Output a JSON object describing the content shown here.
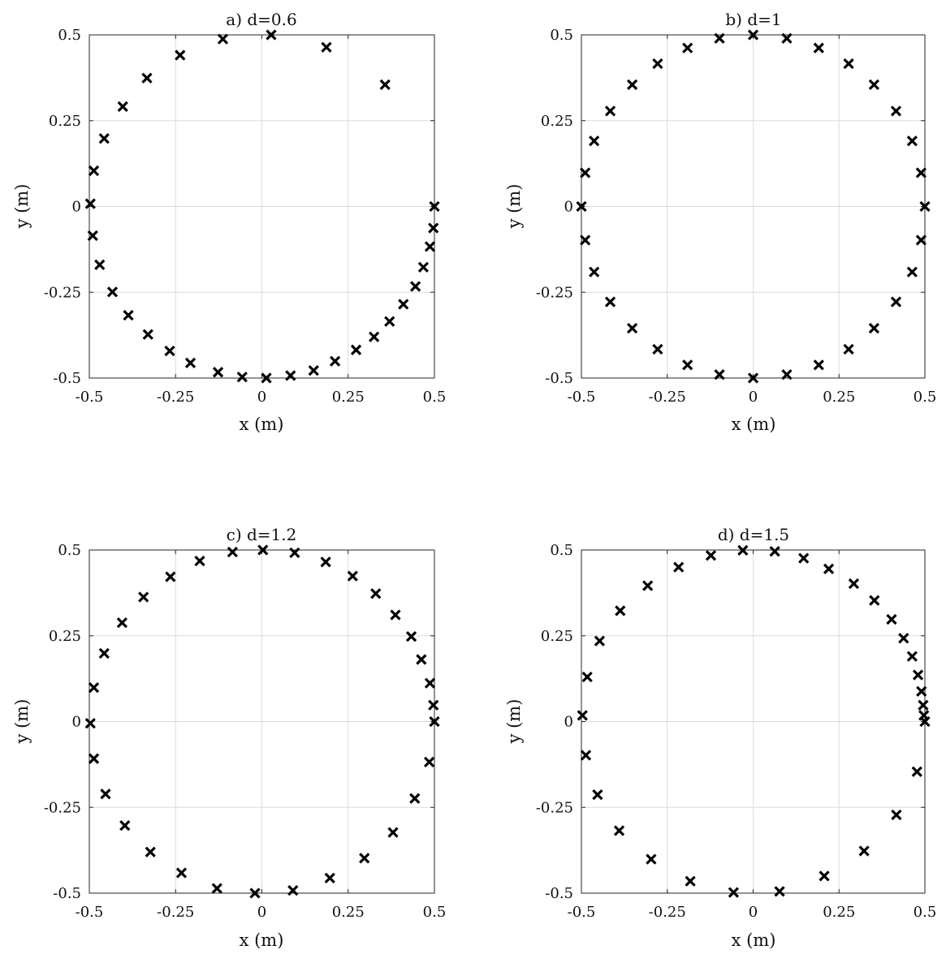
{
  "chart_data": [
    {
      "type": "scatter",
      "title": "a) d=0.6",
      "xlabel": "x (m)",
      "ylabel": "y (m)",
      "xlim": [
        -0.5,
        0.5
      ],
      "ylim": [
        -0.5,
        0.5
      ],
      "xticks": [
        "-0.5",
        "-0.25",
        "0",
        "0.25",
        "0.5"
      ],
      "yticks": [
        "-0.5",
        "-0.25",
        "0",
        "0.25",
        "0.5"
      ],
      "grid": true,
      "marker": "x",
      "points": [
        [
          0.5,
          0.0
        ],
        [
          0.497,
          -0.063
        ],
        [
          0.487,
          -0.117
        ],
        [
          0.468,
          -0.177
        ],
        [
          0.445,
          -0.233
        ],
        [
          0.41,
          -0.285
        ],
        [
          0.37,
          -0.335
        ],
        [
          0.325,
          -0.38
        ],
        [
          0.273,
          -0.418
        ],
        [
          0.212,
          -0.451
        ],
        [
          0.15,
          -0.478
        ],
        [
          0.083,
          -0.493
        ],
        [
          0.013,
          -0.5
        ],
        [
          -0.057,
          -0.497
        ],
        [
          -0.127,
          -0.483
        ],
        [
          -0.207,
          -0.456
        ],
        [
          -0.267,
          -0.421
        ],
        [
          -0.33,
          -0.373
        ],
        [
          -0.387,
          -0.317
        ],
        [
          -0.433,
          -0.249
        ],
        [
          -0.47,
          -0.17
        ],
        [
          -0.49,
          -0.085
        ],
        [
          -0.497,
          0.008
        ],
        [
          -0.487,
          0.104
        ],
        [
          -0.457,
          0.198
        ],
        [
          -0.403,
          0.291
        ],
        [
          -0.333,
          0.374
        ],
        [
          -0.237,
          0.441
        ],
        [
          -0.113,
          0.488
        ],
        [
          0.027,
          0.5
        ],
        [
          0.187,
          0.464
        ],
        [
          0.357,
          0.355
        ]
      ]
    },
    {
      "type": "scatter",
      "title": "b) d=1",
      "xlabel": "x (m)",
      "ylabel": "y (m)",
      "xlim": [
        -0.5,
        0.5
      ],
      "ylim": [
        -0.5,
        0.5
      ],
      "xticks": [
        "-0.5",
        "-0.25",
        "0",
        "0.25",
        "0.5"
      ],
      "yticks": [
        "-0.5",
        "-0.25",
        "0",
        "0.25",
        "0.5"
      ],
      "grid": true,
      "marker": "x",
      "points": [
        [
          0.5,
          0.0
        ],
        [
          0.489,
          0.098
        ],
        [
          0.463,
          0.191
        ],
        [
          0.416,
          0.278
        ],
        [
          0.352,
          0.355
        ],
        [
          0.278,
          0.416
        ],
        [
          0.191,
          0.462
        ],
        [
          0.098,
          0.49
        ],
        [
          0.0,
          0.5
        ],
        [
          -0.098,
          0.49
        ],
        [
          -0.191,
          0.462
        ],
        [
          -0.278,
          0.416
        ],
        [
          -0.352,
          0.355
        ],
        [
          -0.416,
          0.278
        ],
        [
          -0.463,
          0.191
        ],
        [
          -0.489,
          0.098
        ],
        [
          -0.5,
          0.0
        ],
        [
          -0.489,
          -0.098
        ],
        [
          -0.463,
          -0.191
        ],
        [
          -0.416,
          -0.278
        ],
        [
          -0.352,
          -0.355
        ],
        [
          -0.278,
          -0.416
        ],
        [
          -0.191,
          -0.462
        ],
        [
          -0.098,
          -0.49
        ],
        [
          0.0,
          -0.5
        ],
        [
          0.098,
          -0.49
        ],
        [
          0.191,
          -0.462
        ],
        [
          0.278,
          -0.416
        ],
        [
          0.352,
          -0.355
        ],
        [
          0.416,
          -0.278
        ],
        [
          0.463,
          -0.191
        ],
        [
          0.489,
          -0.098
        ]
      ]
    },
    {
      "type": "scatter",
      "title": "c) d=1.2",
      "xlabel": "x (m)",
      "ylabel": "y (m)",
      "xlim": [
        -0.5,
        0.5
      ],
      "ylim": [
        -0.5,
        0.5
      ],
      "xticks": [
        "-0.5",
        "-0.25",
        "0",
        "0.25",
        "0.5"
      ],
      "yticks": [
        "-0.5",
        "-0.25",
        "0",
        "0.25",
        "0.5"
      ],
      "grid": true,
      "marker": "x",
      "points": [
        [
          0.5,
          0.0
        ],
        [
          0.497,
          0.048
        ],
        [
          0.487,
          0.112
        ],
        [
          0.462,
          0.181
        ],
        [
          0.433,
          0.248
        ],
        [
          0.387,
          0.311
        ],
        [
          0.33,
          0.373
        ],
        [
          0.263,
          0.424
        ],
        [
          0.185,
          0.465
        ],
        [
          0.095,
          0.492
        ],
        [
          0.003,
          0.5
        ],
        [
          -0.085,
          0.494
        ],
        [
          -0.18,
          0.468
        ],
        [
          -0.265,
          0.422
        ],
        [
          -0.343,
          0.363
        ],
        [
          -0.405,
          0.288
        ],
        [
          -0.457,
          0.199
        ],
        [
          -0.487,
          0.099
        ],
        [
          -0.497,
          -0.005
        ],
        [
          -0.487,
          -0.108
        ],
        [
          -0.453,
          -0.211
        ],
        [
          -0.397,
          -0.303
        ],
        [
          -0.323,
          -0.38
        ],
        [
          -0.233,
          -0.441
        ],
        [
          -0.13,
          -0.486
        ],
        [
          -0.02,
          -0.5
        ],
        [
          0.09,
          -0.492
        ],
        [
          0.197,
          -0.456
        ],
        [
          0.297,
          -0.398
        ],
        [
          0.38,
          -0.323
        ],
        [
          0.443,
          -0.224
        ],
        [
          0.485,
          -0.118
        ]
      ]
    },
    {
      "type": "scatter",
      "title": "d) d=1.5",
      "xlabel": "x (m)",
      "ylabel": "y (m)",
      "xlim": [
        -0.5,
        0.5
      ],
      "ylim": [
        -0.5,
        0.5
      ],
      "xticks": [
        "-0.5",
        "-0.25",
        "0",
        "0.25",
        "0.5"
      ],
      "yticks": [
        "-0.5",
        "-0.25",
        "0",
        "0.25",
        "0.5"
      ],
      "grid": true,
      "marker": "x",
      "points": [
        [
          0.5,
          0.0
        ],
        [
          0.497,
          0.018
        ],
        [
          0.495,
          0.048
        ],
        [
          0.49,
          0.088
        ],
        [
          0.48,
          0.136
        ],
        [
          0.463,
          0.19
        ],
        [
          0.438,
          0.243
        ],
        [
          0.403,
          0.298
        ],
        [
          0.353,
          0.353
        ],
        [
          0.293,
          0.402
        ],
        [
          0.22,
          0.445
        ],
        [
          0.147,
          0.476
        ],
        [
          0.063,
          0.496
        ],
        [
          -0.03,
          0.499
        ],
        [
          -0.123,
          0.484
        ],
        [
          -0.217,
          0.45
        ],
        [
          -0.307,
          0.396
        ],
        [
          -0.387,
          0.323
        ],
        [
          -0.447,
          0.235
        ],
        [
          -0.483,
          0.13
        ],
        [
          -0.497,
          0.018
        ],
        [
          -0.487,
          -0.098
        ],
        [
          -0.453,
          -0.213
        ],
        [
          -0.39,
          -0.318
        ],
        [
          -0.297,
          -0.401
        ],
        [
          -0.183,
          -0.465
        ],
        [
          -0.057,
          -0.498
        ],
        [
          0.077,
          -0.495
        ],
        [
          0.207,
          -0.45
        ],
        [
          0.323,
          -0.377
        ],
        [
          0.417,
          -0.272
        ],
        [
          0.477,
          -0.146
        ]
      ]
    }
  ]
}
